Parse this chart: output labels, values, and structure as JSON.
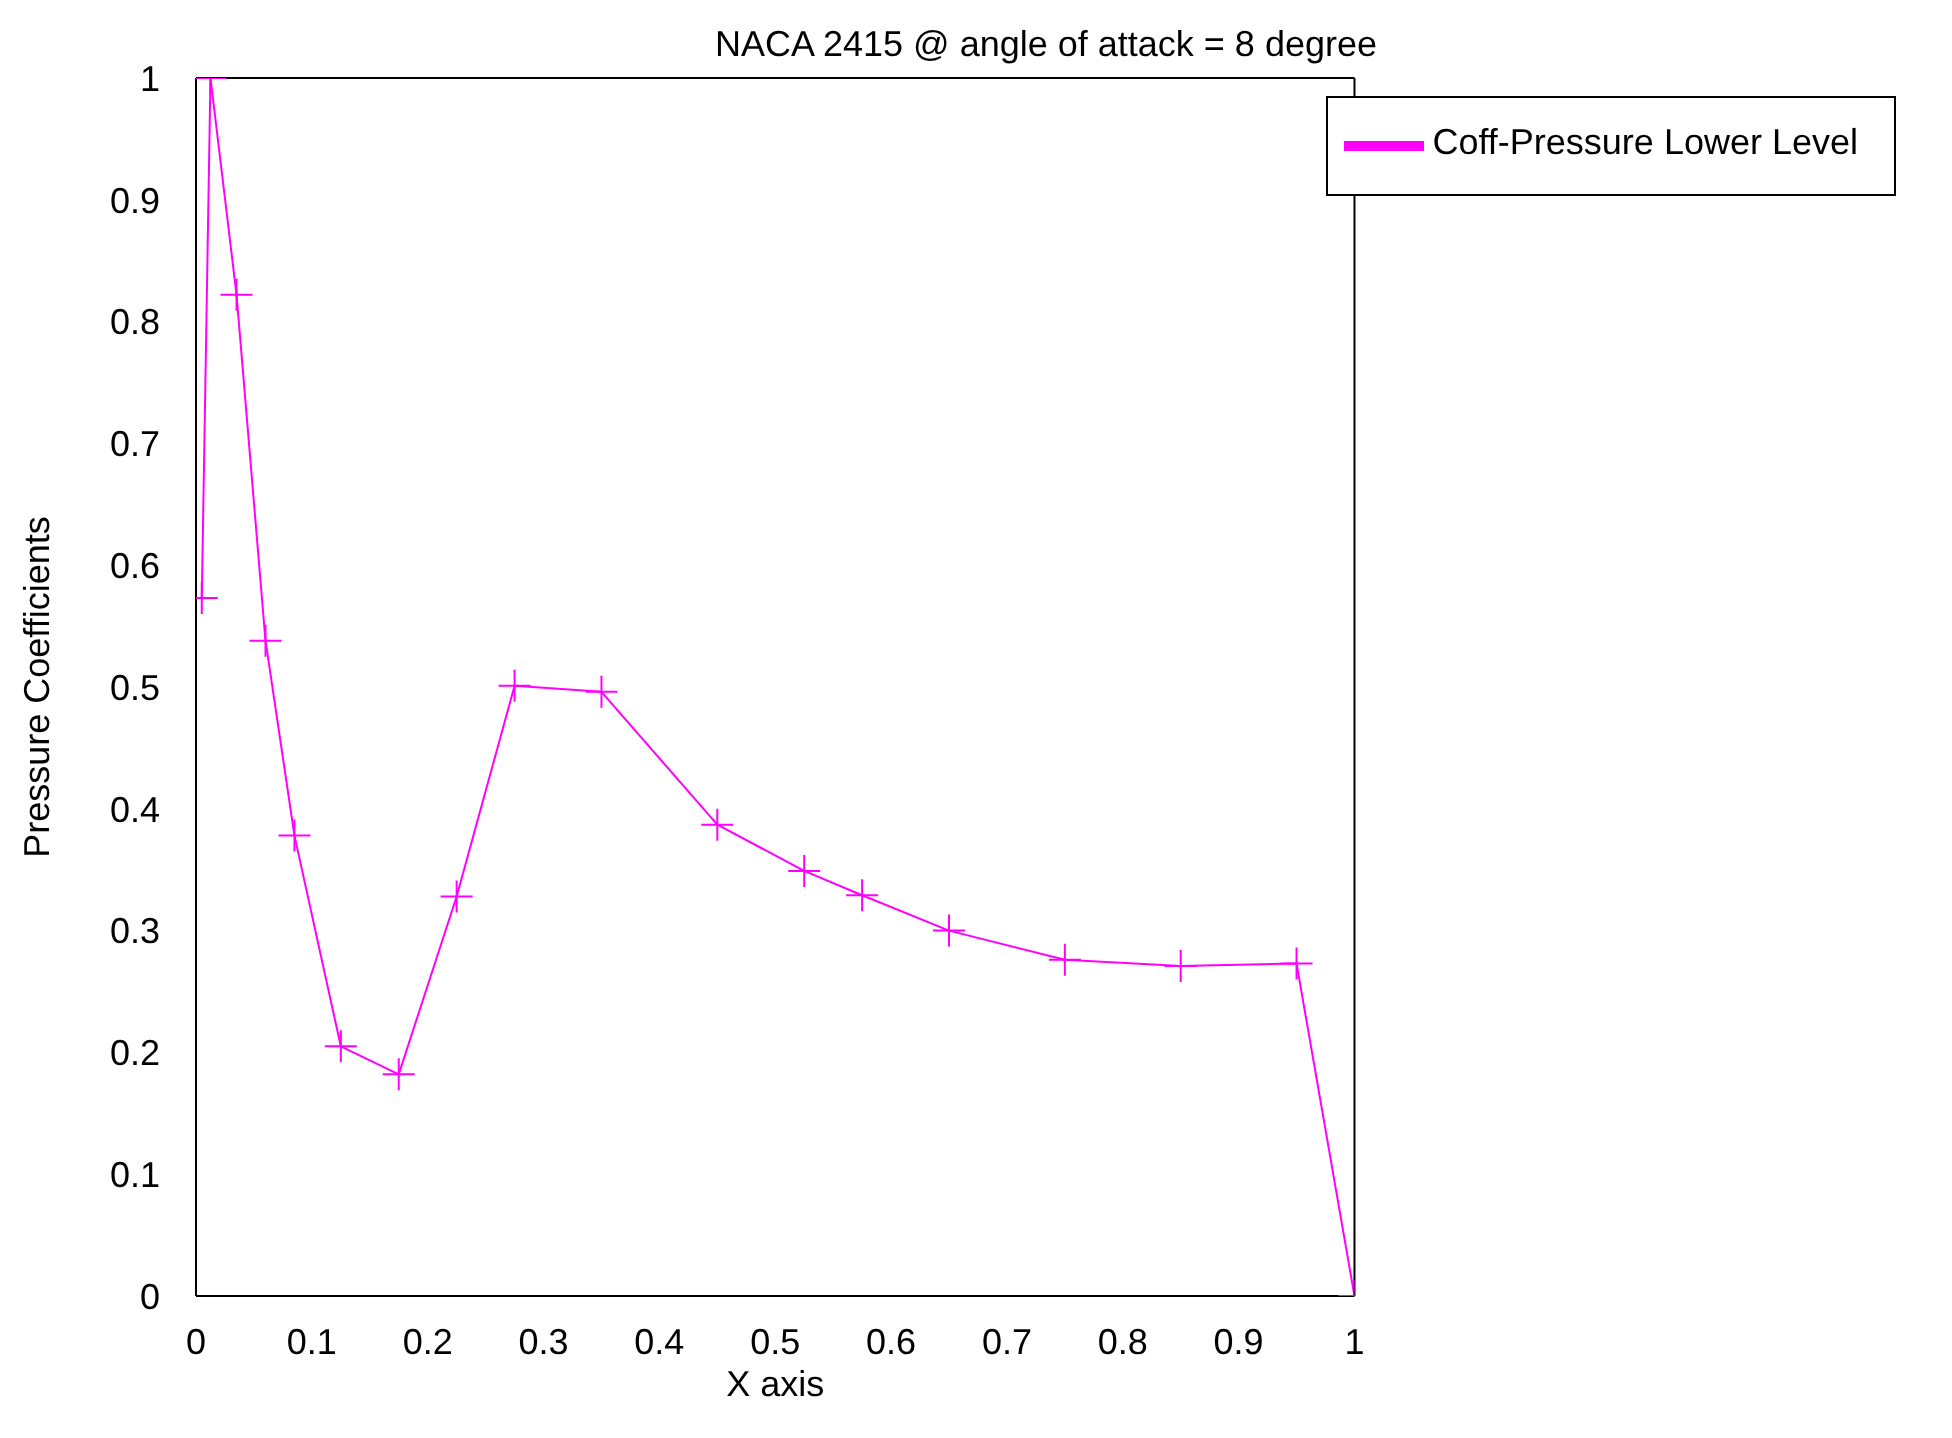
{
  "chart_data": {
    "type": "line",
    "title": "NACA 2415 @ angle of attack = 8 degree",
    "xlabel": "X axis",
    "ylabel": "Pressure Coefficients",
    "x": [
      0.005,
      0.0125,
      0.035,
      0.06,
      0.085,
      0.125,
      0.175,
      0.225,
      0.275,
      0.35,
      0.45,
      0.525,
      0.575,
      0.65,
      0.75,
      0.85,
      0.95,
      1.0
    ],
    "series": [
      {
        "name": "Coff-Pressure Lower Level",
        "color": "#ff00ff",
        "values": [
          0.573,
          1.0,
          0.822,
          0.538,
          0.378,
          0.205,
          0.182,
          0.328,
          0.501,
          0.496,
          0.387,
          0.349,
          0.329,
          0.3,
          0.276,
          0.271,
          0.273,
          0.0
        ]
      }
    ],
    "xlim": [
      0,
      1
    ],
    "xticks": [
      0,
      0.1,
      0.2,
      0.3,
      0.4,
      0.5,
      0.6,
      0.7,
      0.8,
      0.9,
      1
    ],
    "ylim": [
      0,
      1
    ],
    "yticks": [
      0,
      0.1,
      0.2,
      0.3,
      0.4,
      0.5,
      0.6,
      0.7,
      0.8,
      0.9,
      1
    ],
    "grid": false,
    "legend": "top right",
    "marker": "cross",
    "line_style": "solid"
  }
}
